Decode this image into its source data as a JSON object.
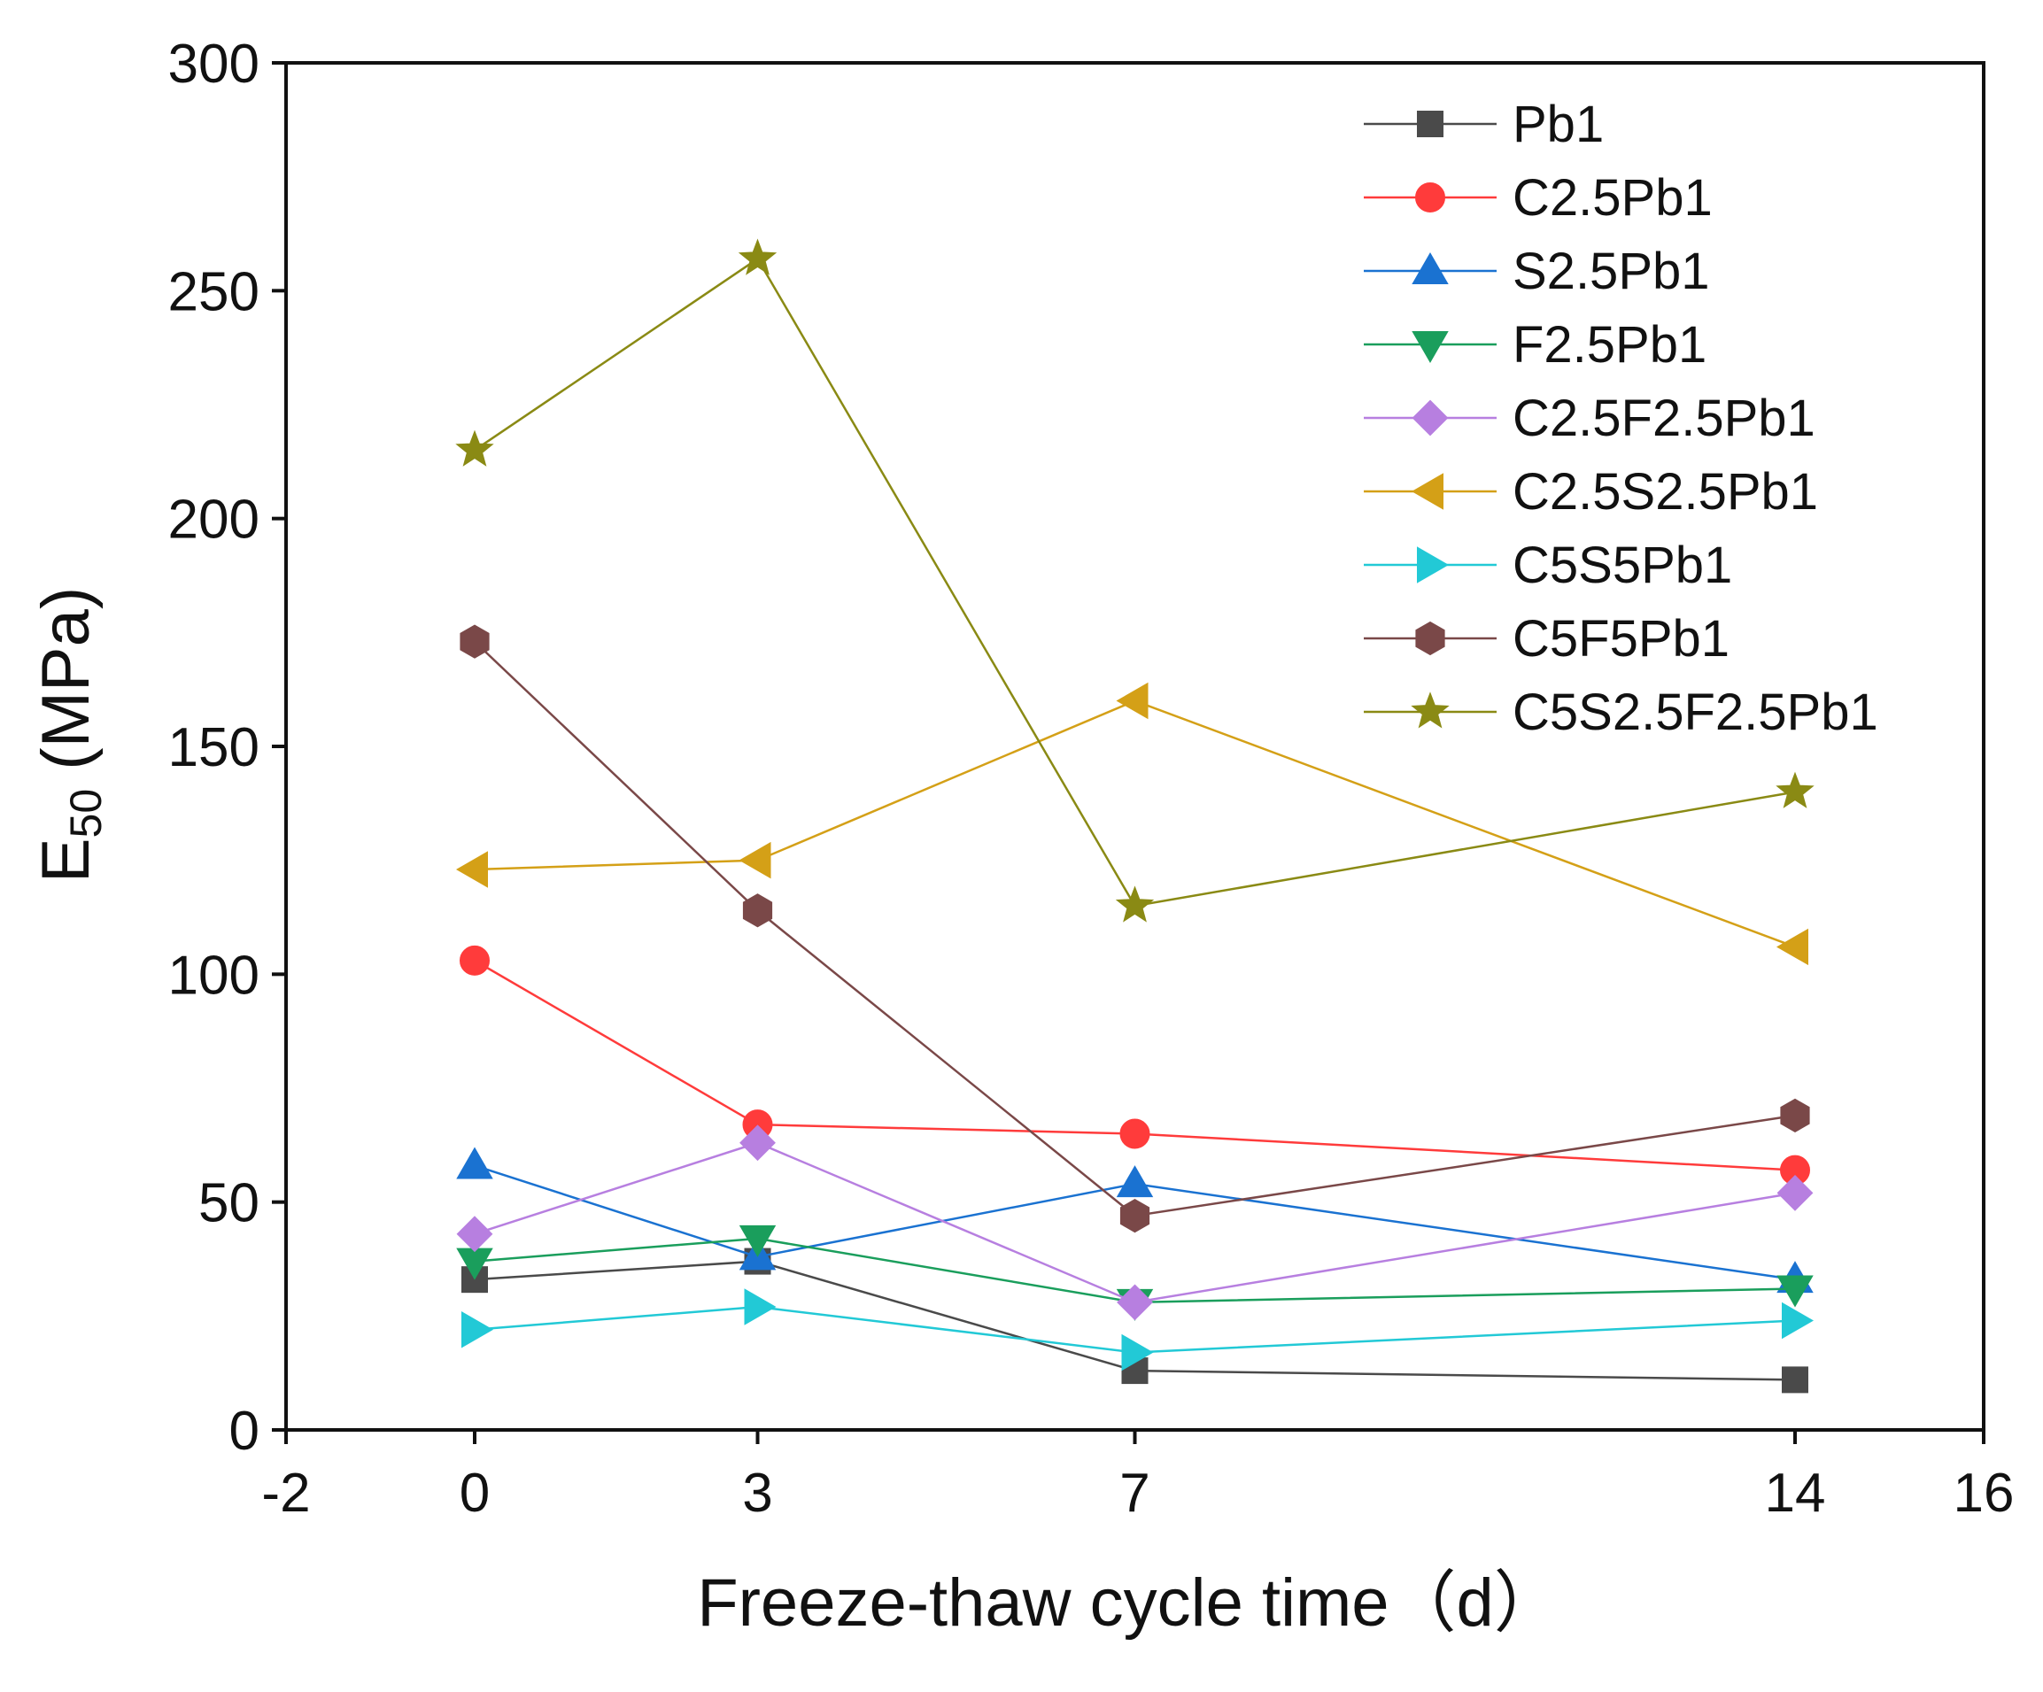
{
  "chart_data": {
    "type": "line",
    "xlabel": "Freeze-thaw cycle time（d）",
    "ylabel_main": "E",
    "ylabel_sub": "50",
    "ylabel_unit": " (MPa)",
    "xlim": [
      -2,
      16
    ],
    "ylim": [
      0,
      300
    ],
    "xticks": [
      {
        "value": -2,
        "label": "-2"
      },
      {
        "value": 0,
        "label": "0"
      },
      {
        "value": 3,
        "label": "3"
      },
      {
        "value": 7,
        "label": "7"
      },
      {
        "value": 14,
        "label": "14"
      },
      {
        "value": 16,
        "label": "16"
      }
    ],
    "yticks": [
      {
        "value": 0,
        "label": "0"
      },
      {
        "value": 50,
        "label": "50"
      },
      {
        "value": 100,
        "label": "100"
      },
      {
        "value": 150,
        "label": "150"
      },
      {
        "value": 200,
        "label": "200"
      },
      {
        "value": 250,
        "label": "250"
      },
      {
        "value": 300,
        "label": "300"
      }
    ],
    "x": [
      0,
      3,
      7,
      14
    ],
    "grid": false,
    "legend_position": "top-right",
    "series": [
      {
        "name": "Pb1",
        "marker": "square",
        "color": "#4a4a4a",
        "values": [
          33,
          37,
          13,
          11
        ]
      },
      {
        "name": "C2.5Pb1",
        "marker": "circle",
        "color": "#ff3b3b",
        "values": [
          103,
          67,
          65,
          57
        ]
      },
      {
        "name": "S2.5Pb1",
        "marker": "triangle-up",
        "color": "#1a72d1",
        "values": [
          58,
          38,
          54,
          33
        ]
      },
      {
        "name": "F2.5Pb1",
        "marker": "triangle-down",
        "color": "#1a9e5c",
        "values": [
          37,
          42,
          28,
          31
        ]
      },
      {
        "name": "C2.5F2.5Pb1",
        "marker": "diamond",
        "color": "#b77fe0",
        "values": [
          43,
          63,
          28,
          52
        ]
      },
      {
        "name": "C2.5S2.5Pb1",
        "marker": "triangle-left",
        "color": "#d4a017",
        "values": [
          123,
          125,
          160,
          106
        ]
      },
      {
        "name": "C5S5Pb1",
        "marker": "triangle-right",
        "color": "#22c9d6",
        "values": [
          22,
          27,
          17,
          24
        ]
      },
      {
        "name": "C5F5Pb1",
        "marker": "hexagon",
        "color": "#7a4848",
        "values": [
          173,
          114,
          47,
          69
        ]
      },
      {
        "name": "C5S2.5F2.5Pb1",
        "marker": "star",
        "color": "#8a8a14",
        "values": [
          215,
          257,
          115,
          140
        ]
      }
    ]
  }
}
